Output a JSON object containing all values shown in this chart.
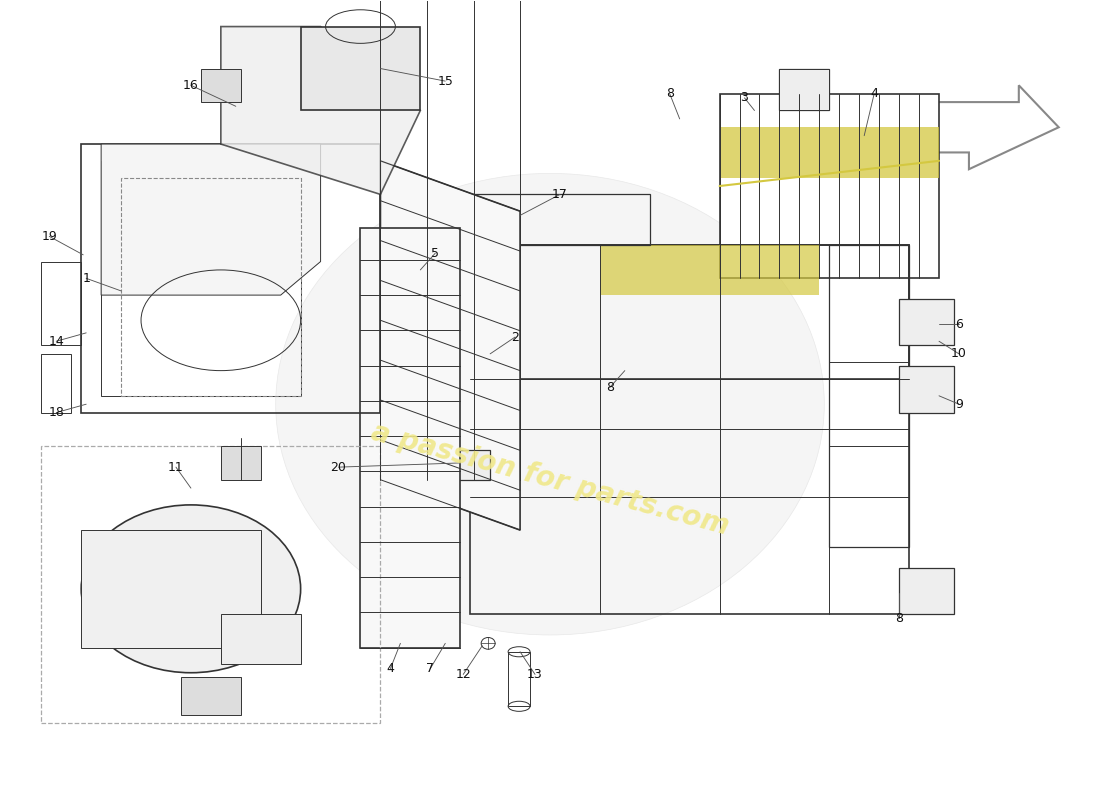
{
  "background_color": "#ffffff",
  "watermark_text": "a passion for parts.com",
  "watermark_color": "#f0e88a",
  "diagram_line_color": "#333333",
  "yellow_highlight": "#d4c840",
  "label_color": "#111111",
  "leader_line_color": "#555555",
  "arrow_outline_color": "#888888"
}
